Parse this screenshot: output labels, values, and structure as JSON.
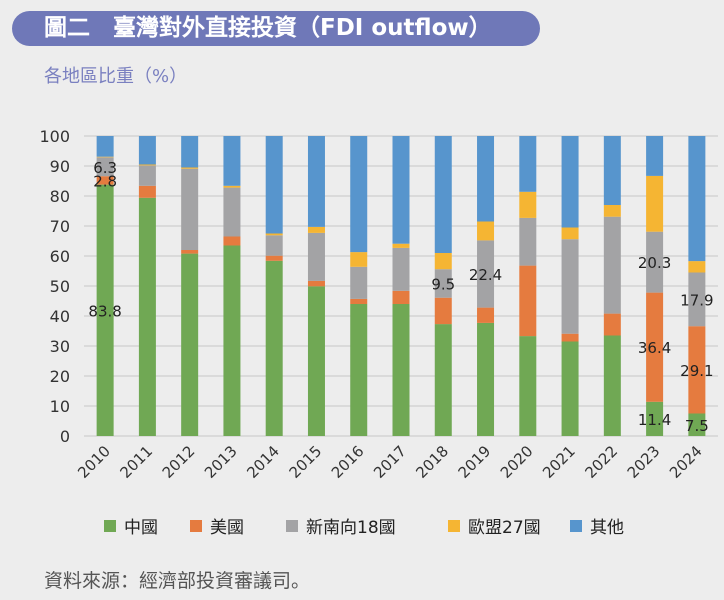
{
  "chart_data": {
    "type": "bar",
    "stacked": true,
    "title": "圖二　臺灣對外直接投資（FDI outflow）",
    "subtitle": "各地區比重（%）",
    "ylim": [
      0,
      100
    ],
    "yticks": [
      "0",
      "10",
      "20",
      "30",
      "40",
      "50",
      "60",
      "70",
      "80",
      "90",
      "100"
    ],
    "grid": true,
    "legend_position": "bottom",
    "categories": [
      "2010",
      "2011",
      "2012",
      "2013",
      "2014",
      "2015",
      "2016",
      "2017",
      "2018",
      "2019",
      "2020",
      "2021",
      "2022",
      "2023",
      "2024"
    ],
    "series": [
      {
        "name": "中國",
        "color": "#70a854",
        "values": [
          83.8,
          79.4,
          60.8,
          63.5,
          58.4,
          49.9,
          44.0,
          44.0,
          37.3,
          37.7,
          33.3,
          31.5,
          33.5,
          11.4,
          7.5
        ]
      },
      {
        "name": "美國",
        "color": "#e57b3f",
        "values": [
          2.8,
          4.0,
          1.2,
          3.0,
          1.7,
          1.8,
          1.7,
          4.4,
          8.8,
          5.1,
          23.5,
          2.6,
          7.3,
          36.4,
          29.1
        ]
      },
      {
        "name": "新南向18國",
        "color": "#a3a3a5",
        "values": [
          6.3,
          6.8,
          27.1,
          16.3,
          6.8,
          16.0,
          10.7,
          14.3,
          9.5,
          22.4,
          15.9,
          31.5,
          32.3,
          20.3,
          17.9
        ]
      },
      {
        "name": "歐盟27國",
        "color": "#f5b533",
        "values": [
          0.2,
          0.3,
          0.4,
          0.6,
          0.6,
          2.0,
          4.9,
          1.4,
          5.4,
          6.3,
          8.7,
          3.9,
          3.9,
          18.6,
          3.8
        ]
      },
      {
        "name": "其他",
        "color": "#5795cd",
        "values": [
          6.9,
          9.5,
          10.5,
          16.6,
          32.5,
          30.3,
          38.7,
          35.9,
          39.0,
          28.5,
          18.6,
          30.5,
          23.0,
          13.3,
          41.7
        ]
      }
    ],
    "data_labels": [
      {
        "category": "2010",
        "series": 0,
        "text": "83.8"
      },
      {
        "category": "2010",
        "series": 1,
        "text": "2.8"
      },
      {
        "category": "2010",
        "series": 2,
        "text": "6.3"
      },
      {
        "category": "2018",
        "series": 2,
        "text": "9.5"
      },
      {
        "category": "2019",
        "series": 2,
        "text": "22.4"
      },
      {
        "category": "2023",
        "series": 0,
        "text": "11.4"
      },
      {
        "category": "2023",
        "series": 1,
        "text": "36.4"
      },
      {
        "category": "2023",
        "series": 2,
        "text": "20.3"
      },
      {
        "category": "2024",
        "series": 0,
        "text": "7.5"
      },
      {
        "category": "2024",
        "series": 1,
        "text": "29.1"
      },
      {
        "category": "2024",
        "series": 2,
        "text": "17.9"
      }
    ],
    "source": "資料來源：經濟部投資審議司。"
  }
}
